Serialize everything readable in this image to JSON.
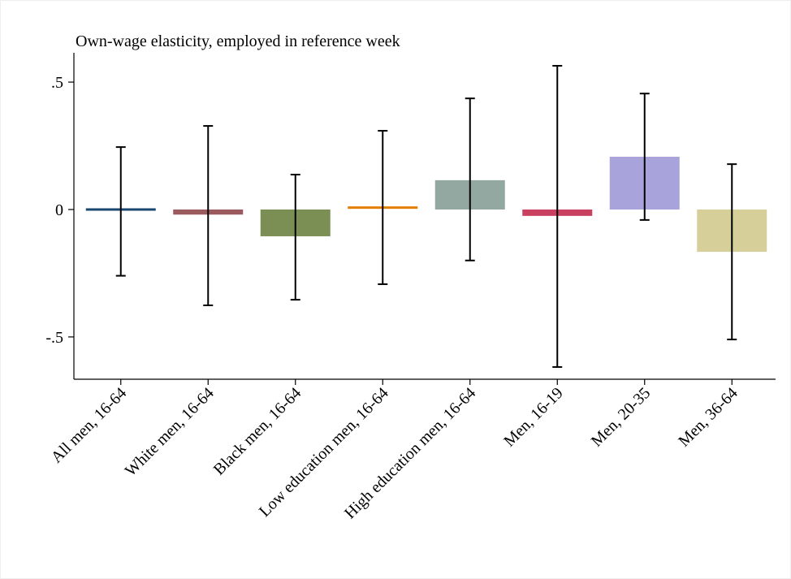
{
  "chart_data": {
    "type": "bar",
    "title": "Own-wage elasticity, employed in reference week",
    "categories": [
      "All men, 16-64",
      "White men, 16-64",
      "Black men, 16-64",
      "Low education men, 16-64",
      "High education men, 16-64",
      "Men, 16-19",
      "Men, 20-35",
      "Men, 36-64"
    ],
    "series": [
      {
        "values": [
          0.0,
          -0.02,
          -0.105,
          0.005,
          0.115,
          -0.025,
          0.207,
          -0.166
        ],
        "ci_low": [
          -0.26,
          -0.376,
          -0.354,
          -0.293,
          -0.2,
          -0.618,
          -0.041,
          -0.51
        ],
        "ci_high": [
          0.245,
          0.328,
          0.137,
          0.309,
          0.436,
          0.564,
          0.455,
          0.178
        ]
      }
    ],
    "colors": [
      "#1a476f",
      "#9b5a5e",
      "#7b8f55",
      "#e37e00",
      "#92a8a0",
      "#c94060",
      "#a9a3dc",
      "#d6cf9a"
    ],
    "ylim": [
      -0.666,
      0.615
    ],
    "yticks": [
      {
        "value": 0.5,
        "label": ".5"
      },
      0,
      {
        "value": -0.5,
        "label": "-.5"
      }
    ]
  }
}
